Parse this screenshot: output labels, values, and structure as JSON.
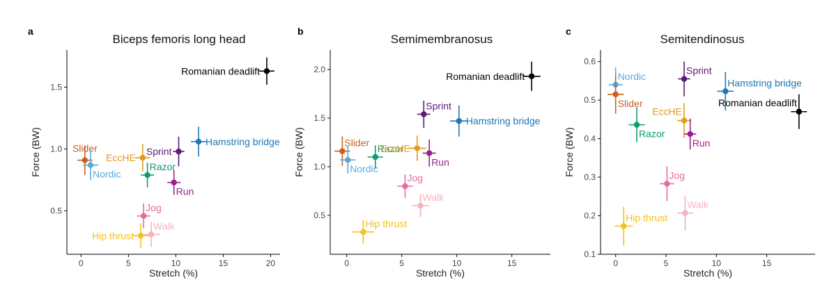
{
  "chart_data": [
    {
      "type": "scatter",
      "panel": "a",
      "title": "Biceps femoris long head",
      "xlabel": "Stretch (%)",
      "ylabel": "Force (BW)",
      "xlim": [
        -1.5,
        21
      ],
      "ylim": [
        0.15,
        1.8
      ],
      "xticks": [
        0,
        5,
        10,
        15,
        20
      ],
      "yticks": [
        0.5,
        1.0,
        1.5
      ],
      "ytick_labels": [
        "0.5",
        "1.0",
        "1.5"
      ],
      "grid": false,
      "points": [
        {
          "name": "Romanian deadlift",
          "x": 19.6,
          "y": 1.63,
          "x_err": 0.8,
          "y_err": 0.11,
          "color": "#000000",
          "label_pos": "left"
        },
        {
          "name": "Hamstring bridge",
          "x": 12.4,
          "y": 1.06,
          "x_err": 0.8,
          "y_err": 0.12,
          "color": "#1f77b4",
          "label_pos": "right"
        },
        {
          "name": "Sprint",
          "x": 10.3,
          "y": 0.98,
          "x_err": 0.6,
          "y_err": 0.12,
          "color": "#5b1a79",
          "label_pos": "left"
        },
        {
          "name": "Slider",
          "x": 0.4,
          "y": 0.91,
          "x_err": 0.8,
          "y_err": 0.12,
          "color": "#c9601f",
          "label_pos": "above"
        },
        {
          "name": "Nordic",
          "x": 1.0,
          "y": 0.87,
          "x_err": 0.8,
          "y_err": 0.12,
          "color": "#5aa8dc",
          "label_pos": "below-right"
        },
        {
          "name": "EccHE",
          "x": 6.5,
          "y": 0.93,
          "x_err": 0.8,
          "y_err": 0.11,
          "color": "#e39a1b",
          "label_pos": "left"
        },
        {
          "name": "Razor",
          "x": 7.0,
          "y": 0.79,
          "x_err": 0.7,
          "y_err": 0.1,
          "color": "#0f9b72",
          "label_pos": "above-right"
        },
        {
          "name": "Run",
          "x": 9.8,
          "y": 0.73,
          "x_err": 0.7,
          "y_err": 0.1,
          "color": "#9a1f8e",
          "label_pos": "below-right"
        },
        {
          "name": "Jog",
          "x": 6.6,
          "y": 0.46,
          "x_err": 0.7,
          "y_err": 0.1,
          "color": "#e86aa0",
          "label_pos": "above-right"
        },
        {
          "name": "Hip thrust",
          "x": 6.3,
          "y": 0.3,
          "x_err": 0.9,
          "y_err": 0.1,
          "color": "#f2c31b",
          "label_pos": "left"
        },
        {
          "name": "Walk",
          "x": 7.4,
          "y": 0.31,
          "x_err": 0.9,
          "y_err": 0.1,
          "color": "#f4b3bd",
          "label_pos": "above-right"
        }
      ]
    },
    {
      "type": "scatter",
      "panel": "b",
      "title": "Semimembranosus",
      "xlabel": "Stretch (%)",
      "ylabel": "Force (BW)",
      "xlim": [
        -1.5,
        18.5
      ],
      "ylim": [
        0.1,
        2.2
      ],
      "xticks": [
        0,
        5,
        10,
        15
      ],
      "yticks": [
        0.5,
        1.0,
        1.5,
        2.0
      ],
      "ytick_labels": [
        "0.5",
        "1.0",
        "1.5",
        "2.0"
      ],
      "grid": false,
      "points": [
        {
          "name": "Romanian deadlift",
          "x": 16.8,
          "y": 1.93,
          "x_err": 0.8,
          "y_err": 0.15,
          "color": "#000000",
          "label_pos": "left"
        },
        {
          "name": "Sprint",
          "x": 7.0,
          "y": 1.54,
          "x_err": 0.6,
          "y_err": 0.14,
          "color": "#5b1a79",
          "label_pos": "above-right"
        },
        {
          "name": "Hamstring bridge",
          "x": 10.2,
          "y": 1.47,
          "x_err": 0.8,
          "y_err": 0.16,
          "color": "#1f77b4",
          "label_pos": "right"
        },
        {
          "name": "Slider",
          "x": -0.4,
          "y": 1.16,
          "x_err": 0.7,
          "y_err": 0.15,
          "color": "#c9601f",
          "label_pos": "above-right"
        },
        {
          "name": "Nordic",
          "x": 0.1,
          "y": 1.07,
          "x_err": 0.7,
          "y_err": 0.14,
          "color": "#5aa8dc",
          "label_pos": "below-right"
        },
        {
          "name": "Razor",
          "x": 2.6,
          "y": 1.1,
          "x_err": 0.7,
          "y_err": 0.12,
          "color": "#0f9b72",
          "label_pos": "above-right"
        },
        {
          "name": "EccHE",
          "x": 6.4,
          "y": 1.19,
          "x_err": 0.8,
          "y_err": 0.13,
          "color": "#e39a1b",
          "label_pos": "left"
        },
        {
          "name": "Run",
          "x": 7.5,
          "y": 1.14,
          "x_err": 0.6,
          "y_err": 0.14,
          "color": "#9a1f8e",
          "label_pos": "below-right"
        },
        {
          "name": "Jog",
          "x": 5.3,
          "y": 0.8,
          "x_err": 0.7,
          "y_err": 0.12,
          "color": "#e86aa0",
          "label_pos": "above-right"
        },
        {
          "name": "Walk",
          "x": 6.7,
          "y": 0.6,
          "x_err": 0.8,
          "y_err": 0.12,
          "color": "#f4b3bd",
          "label_pos": "above-right"
        },
        {
          "name": "Hip thrust",
          "x": 1.5,
          "y": 0.33,
          "x_err": 1.0,
          "y_err": 0.12,
          "color": "#f2c31b",
          "label_pos": "above-right"
        }
      ]
    },
    {
      "type": "scatter",
      "panel": "c",
      "title": "Semitendinosus",
      "xlabel": "Stretch (%)",
      "ylabel": "Force (BW)",
      "xlim": [
        -1.5,
        19.8
      ],
      "ylim": [
        0.1,
        0.63
      ],
      "xticks": [
        0,
        5,
        10,
        15
      ],
      "yticks": [
        0.1,
        0.2,
        0.3,
        0.4,
        0.5,
        0.6
      ],
      "ytick_labels": [
        "0.1",
        "0.2",
        "0.3",
        "0.4",
        "0.5",
        "0.6"
      ],
      "grid": false,
      "points": [
        {
          "name": "Nordic",
          "x": 0.0,
          "y": 0.54,
          "x_err": 0.7,
          "y_err": 0.045,
          "color": "#5aa8dc",
          "label_pos": "above-right"
        },
        {
          "name": "Sprint",
          "x": 6.8,
          "y": 0.555,
          "x_err": 0.6,
          "y_err": 0.045,
          "color": "#5b1a79",
          "label_pos": "above-right"
        },
        {
          "name": "Hamstring bridge",
          "x": 10.9,
          "y": 0.523,
          "x_err": 0.8,
          "y_err": 0.05,
          "color": "#1f77b4",
          "label_pos": "above-right"
        },
        {
          "name": "Slider",
          "x": 0.0,
          "y": 0.515,
          "x_err": 0.8,
          "y_err": 0.05,
          "color": "#c9601f",
          "label_pos": "below-right"
        },
        {
          "name": "Romanian deadlift",
          "x": 18.2,
          "y": 0.47,
          "x_err": 0.8,
          "y_err": 0.045,
          "color": "#000000",
          "label_pos": "above-left"
        },
        {
          "name": "EccHE",
          "x": 6.8,
          "y": 0.447,
          "x_err": 0.7,
          "y_err": 0.045,
          "color": "#e39a1b",
          "label_pos": "above-left"
        },
        {
          "name": "Razor",
          "x": 2.1,
          "y": 0.436,
          "x_err": 0.8,
          "y_err": 0.045,
          "color": "#0f9b72",
          "label_pos": "below-right"
        },
        {
          "name": "Run",
          "x": 7.4,
          "y": 0.412,
          "x_err": 0.6,
          "y_err": 0.04,
          "color": "#9a1f8e",
          "label_pos": "below-right"
        },
        {
          "name": "Jog",
          "x": 5.1,
          "y": 0.283,
          "x_err": 0.7,
          "y_err": 0.045,
          "color": "#e86aa0",
          "label_pos": "above-right"
        },
        {
          "name": "Walk",
          "x": 6.9,
          "y": 0.207,
          "x_err": 0.8,
          "y_err": 0.045,
          "color": "#f4b3bd",
          "label_pos": "above-right"
        },
        {
          "name": "Hip thrust",
          "x": 0.8,
          "y": 0.173,
          "x_err": 0.9,
          "y_err": 0.05,
          "color": "#f2c31b",
          "label_pos": "above-right"
        }
      ]
    }
  ]
}
